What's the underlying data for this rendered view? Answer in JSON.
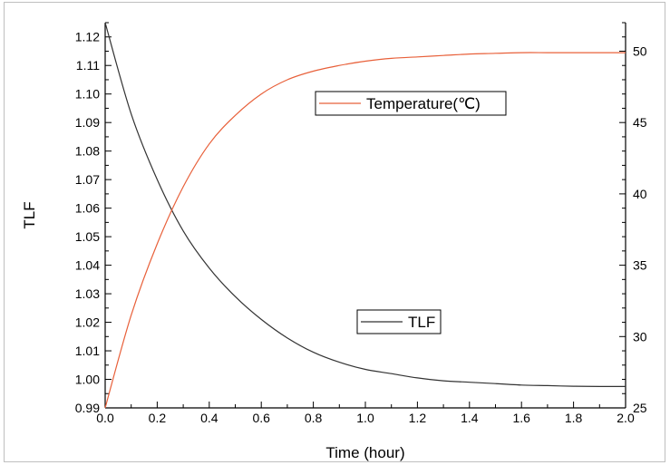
{
  "chart_data": {
    "type": "line",
    "title": "",
    "xlabel": "Time (hour)",
    "ylabel_left": "TLF",
    "ylabel_right": "",
    "xlim": [
      0.0,
      2.0
    ],
    "ylim_left": [
      0.99,
      1.125
    ],
    "ylim_right": [
      25,
      52
    ],
    "x_ticks": [
      "0.0",
      "0.2",
      "0.4",
      "0.6",
      "0.8",
      "1.0",
      "1.2",
      "1.4",
      "1.6",
      "1.8",
      "2.0"
    ],
    "y_left_ticks": [
      "0.99",
      "1.00",
      "1.01",
      "1.02",
      "1.03",
      "1.04",
      "1.05",
      "1.06",
      "1.07",
      "1.08",
      "1.09",
      "1.10",
      "1.11",
      "1.12"
    ],
    "y_right_ticks": [
      "25",
      "30",
      "35",
      "40",
      "45",
      "50"
    ],
    "grid": false,
    "series": [
      {
        "name": "TLF",
        "axis": "left",
        "color": "#333333",
        "x": [
          0.0,
          0.1,
          0.2,
          0.3,
          0.4,
          0.5,
          0.6,
          0.7,
          0.8,
          0.9,
          1.0,
          1.1,
          1.2,
          1.3,
          1.4,
          1.5,
          1.6,
          1.7,
          1.8,
          1.9,
          2.0
        ],
        "y": [
          1.125,
          1.093,
          1.07,
          1.052,
          1.039,
          1.029,
          1.021,
          1.0145,
          1.0095,
          1.006,
          1.0035,
          1.002,
          1.0005,
          0.9995,
          0.999,
          0.9985,
          0.998,
          0.9978,
          0.9976,
          0.9975,
          0.9975
        ]
      },
      {
        "name": "Temperature(℃)",
        "axis": "right",
        "color": "#e8603a",
        "x": [
          0.0,
          0.1,
          0.2,
          0.3,
          0.4,
          0.5,
          0.6,
          0.7,
          0.8,
          0.9,
          1.0,
          1.1,
          1.2,
          1.3,
          1.4,
          1.5,
          1.6,
          1.7,
          1.8,
          1.9,
          2.0
        ],
        "y": [
          25,
          31.5,
          36.5,
          40.5,
          43.5,
          45.5,
          47,
          48,
          48.6,
          49,
          49.3,
          49.5,
          49.6,
          49.7,
          49.8,
          49.85,
          49.9,
          49.9,
          49.9,
          49.9,
          49.9
        ]
      }
    ],
    "legends": [
      {
        "label": "Temperature(℃)",
        "color": "#e8603a",
        "placement": "upper-center"
      },
      {
        "label": "TLF",
        "color": "#333333",
        "placement": "lower-center"
      }
    ]
  }
}
